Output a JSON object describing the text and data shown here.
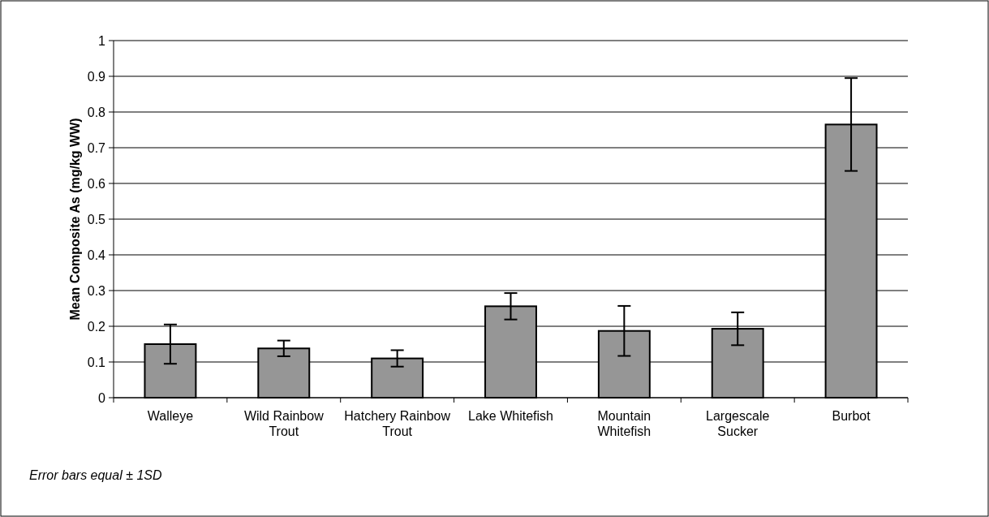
{
  "chart_data": {
    "type": "bar",
    "ylabel": "Mean Composite As (mg/kg WW)",
    "categories": [
      "Walleye",
      "Wild Rainbow Trout",
      "Hatchery Rainbow Trout",
      "Lake Whitefish",
      "Mountain Whitefish",
      "Largescale Sucker",
      "Burbot"
    ],
    "values": [
      0.15,
      0.138,
      0.11,
      0.256,
      0.187,
      0.193,
      0.765
    ],
    "errors": [
      0.055,
      0.022,
      0.023,
      0.037,
      0.07,
      0.046,
      0.13
    ],
    "color": "#969696",
    "ylim": [
      0,
      1
    ],
    "yticks": [
      0,
      0.1,
      0.2,
      0.3,
      0.4,
      0.5,
      0.6,
      0.7,
      0.8,
      0.9,
      1
    ],
    "grid": "y",
    "annotations": [
      "Error bars equal ± 1SD"
    ]
  }
}
